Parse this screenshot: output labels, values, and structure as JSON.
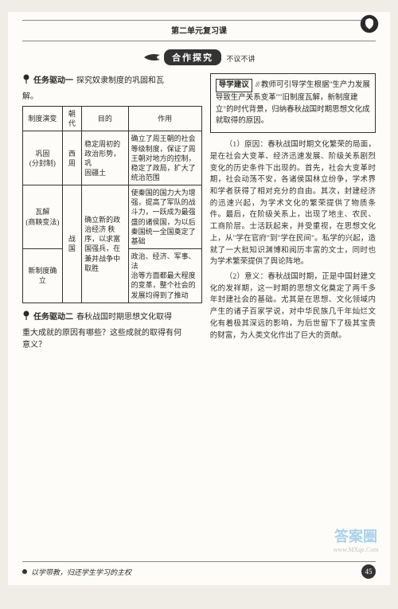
{
  "header": {
    "title": "第二单元复习课"
  },
  "banner": {
    "main": "合作探究",
    "side": "不议不讲"
  },
  "task1": {
    "label": "任务驱动一",
    "title": "探究奴隶制度的巩固和瓦",
    "title_cont": "解。"
  },
  "table": {
    "headers": [
      "制度演变",
      "朝代",
      "目的",
      "作用"
    ],
    "rows": [
      {
        "c0": "巩固\n(分封制)",
        "c1": "西周",
        "c2": "稳定周初的\n政治形势，巩\n固疆土",
        "c3": "确立了周王朝的社会\n等级制度，保证了周\n王朝对地方的控制，\n稳定了政局，扩大了\n统治范围"
      },
      {
        "c0": "瓦解\n(商鞅变法)",
        "c1_rowspan": 2,
        "c1": "战国",
        "c2": "确立新的政\n治经济 秩\n序，以求富\n国强兵，在\n兼并战争中\n取胜",
        "c3": "使秦国的国力大为增\n强，提高了军队的战\n斗力，一跃成为最强\n盛的诸侯国，为以后\n秦国统一全国奠定了\n基础"
      },
      {
        "c0": "新制度确立",
        "c3": "政治、经济、军事、法\n治等方面都最大程度\n的变革，整个社会的\n发展均得到了推动"
      }
    ]
  },
  "task2": {
    "label": "任务驱动二",
    "title": "春秋战国时期思想文化取得",
    "line2": "重大成就的原因有哪些？这些成就的取得有何",
    "line3": "意义？"
  },
  "guide": {
    "label": "导学建议",
    "slashes": "///",
    "text": "教师可引导学生根据\"生产力发展导致生产关系变革\"\"旧制度瓦解，新制度建立\"的时代背景，归纳春秋战国时期思想文化成就取得的原因。"
  },
  "paras": {
    "p1": "（1）原因：春秋战国时期文化繁荣的局面，是在社会大变革、经济迅速发展、阶级关系剧烈变化的历史条件下出现的。首先，社会大变革时期，社会动荡不安，各诸侯国林立纷争，学术界和学者获得了相对充分的自由。其次，封建经济的迅速兴起，为学术文化的繁荣提供了物质条件。最后，在阶级关系上，出现了地主、农民、工商阶层。士活跃起来，并受重视，在思想文化上，从\"学在官府\"到\"学在民间\"。私学的兴起，造就了一大批知识渊博和阅历丰富的文士，同时也为学术繁荣提供了舆论阵地。",
    "p2": "（2）意义：春秋战国时期，正是中国封建文化的发祥期，这一时期的思想文化奠定了两千多年封建社会的基础。尤其是在思想、文化领域内产生的诸子百家学说，对中华民族几千年灿烂文化有着极其深远的影响，为后世留下了极其宝贵的财富，为人类文化作出了巨大的贡献。"
  },
  "footer": {
    "text": "以学带教，归还学生学习的主权",
    "page": "45"
  },
  "watermark": {
    "line1": "答案圈",
    "line2": "www.MXqe.Com"
  },
  "colors": {
    "page_bg": "#fdfcf8",
    "outer_bg": "#f0ede6",
    "text": "#2a2a2a",
    "border": "#333333",
    "wm_blue": "#5aa8e0"
  }
}
